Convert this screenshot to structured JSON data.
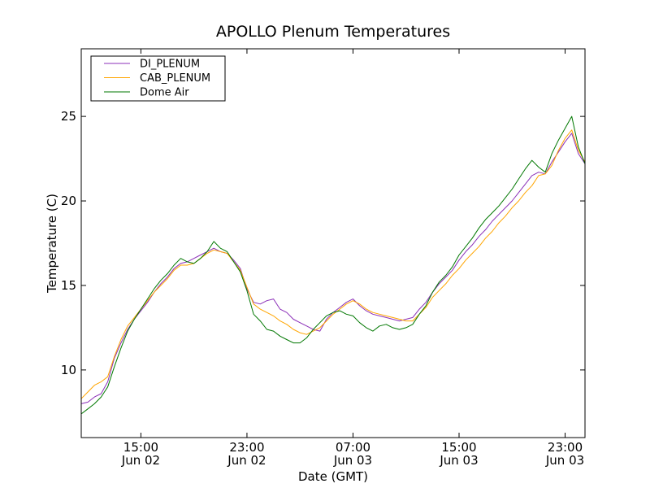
{
  "chart_data": {
    "type": "line",
    "title": "APOLLO Plenum Temperatures",
    "xlabel": "Date (GMT)",
    "ylabel": "Temperature (C)",
    "x_unit": "hours since Jun 02 00:00 GMT",
    "xlim": [
      10.5,
      48.5
    ],
    "ylim": [
      6,
      29
    ],
    "grid": false,
    "legend_position": "top-left",
    "x_ticks": [
      {
        "value": 15,
        "line1": "15:00",
        "line2": "Jun 02"
      },
      {
        "value": 23,
        "line1": "23:00",
        "line2": "Jun 02"
      },
      {
        "value": 31,
        "line1": "07:00",
        "line2": "Jun 03"
      },
      {
        "value": 39,
        "line1": "15:00",
        "line2": "Jun 03"
      },
      {
        "value": 47,
        "line1": "23:00",
        "line2": "Jun 03"
      }
    ],
    "y_ticks": [
      10,
      15,
      20,
      25
    ],
    "x": [
      10.5,
      11.0,
      11.5,
      12.0,
      12.5,
      13.0,
      13.5,
      14.0,
      14.5,
      15.0,
      15.5,
      16.0,
      16.5,
      17.0,
      17.5,
      18.0,
      18.5,
      19.0,
      19.5,
      20.0,
      20.5,
      21.0,
      21.5,
      22.0,
      22.5,
      23.0,
      23.5,
      24.0,
      24.5,
      25.0,
      25.5,
      26.0,
      26.5,
      27.0,
      27.5,
      28.0,
      28.5,
      29.0,
      29.5,
      30.0,
      30.5,
      31.0,
      31.5,
      32.0,
      32.5,
      33.0,
      33.5,
      34.0,
      34.5,
      35.0,
      35.5,
      36.0,
      36.5,
      37.0,
      37.5,
      38.0,
      38.5,
      39.0,
      39.5,
      40.0,
      40.5,
      41.0,
      41.5,
      42.0,
      42.5,
      43.0,
      43.5,
      44.0,
      44.5,
      45.0,
      45.5,
      46.0,
      46.5,
      47.0,
      47.5,
      48.0,
      48.5
    ],
    "series": [
      {
        "name": "DI_PLENUM",
        "color": "#8b2fb8",
        "values": [
          8.0,
          8.1,
          8.4,
          8.6,
          9.3,
          10.7,
          11.6,
          12.4,
          13.0,
          13.5,
          14.0,
          14.6,
          15.1,
          15.5,
          16.0,
          16.3,
          16.4,
          16.6,
          16.8,
          17.0,
          17.2,
          17.0,
          16.9,
          16.5,
          16.0,
          14.8,
          14.0,
          13.9,
          14.1,
          14.2,
          13.6,
          13.4,
          13.0,
          12.8,
          12.6,
          12.4,
          12.3,
          13.0,
          13.4,
          13.7,
          14.0,
          14.2,
          13.8,
          13.5,
          13.3,
          13.2,
          13.1,
          13.0,
          12.9,
          13.0,
          13.1,
          13.6,
          14.0,
          14.6,
          15.1,
          15.5,
          15.9,
          16.5,
          17.0,
          17.4,
          17.9,
          18.3,
          18.8,
          19.2,
          19.6,
          20.0,
          20.5,
          21.0,
          21.5,
          21.7,
          21.6,
          22.3,
          22.9,
          23.5,
          24.0,
          22.8,
          22.2
        ]
      },
      {
        "name": "CAB_PLENUM",
        "color": "#ffa500",
        "values": [
          8.3,
          8.7,
          9.1,
          9.3,
          9.6,
          10.8,
          11.8,
          12.6,
          13.1,
          13.6,
          14.1,
          14.6,
          15.0,
          15.4,
          15.9,
          16.2,
          16.2,
          16.3,
          16.6,
          16.9,
          17.1,
          17.0,
          16.9,
          16.4,
          15.9,
          14.9,
          13.9,
          13.6,
          13.4,
          13.2,
          12.9,
          12.7,
          12.4,
          12.2,
          12.1,
          12.3,
          12.5,
          12.9,
          13.3,
          13.6,
          13.9,
          14.1,
          13.9,
          13.6,
          13.4,
          13.3,
          13.2,
          13.1,
          13.0,
          12.9,
          12.9,
          13.3,
          13.7,
          14.3,
          14.7,
          15.1,
          15.6,
          16.0,
          16.5,
          16.9,
          17.3,
          17.8,
          18.2,
          18.7,
          19.1,
          19.6,
          20.0,
          20.5,
          20.9,
          21.5,
          21.6,
          22.1,
          23.0,
          23.7,
          24.2,
          23.0,
          22.3
        ]
      },
      {
        "name": "Dome Air",
        "color": "#007700",
        "values": [
          7.4,
          7.7,
          8.0,
          8.4,
          9.0,
          10.2,
          11.3,
          12.3,
          13.0,
          13.6,
          14.2,
          14.8,
          15.3,
          15.7,
          16.2,
          16.6,
          16.4,
          16.3,
          16.6,
          17.0,
          17.6,
          17.2,
          17.0,
          16.4,
          15.8,
          14.7,
          13.3,
          12.9,
          12.4,
          12.3,
          12.0,
          11.8,
          11.6,
          11.6,
          11.9,
          12.4,
          12.8,
          13.2,
          13.4,
          13.5,
          13.3,
          13.2,
          12.8,
          12.5,
          12.3,
          12.6,
          12.7,
          12.5,
          12.4,
          12.5,
          12.7,
          13.3,
          13.8,
          14.6,
          15.2,
          15.6,
          16.1,
          16.8,
          17.3,
          17.8,
          18.4,
          18.9,
          19.3,
          19.7,
          20.2,
          20.7,
          21.3,
          21.9,
          22.4,
          22.0,
          21.7,
          22.8,
          23.6,
          24.3,
          25.0,
          23.2,
          22.2
        ]
      }
    ]
  }
}
